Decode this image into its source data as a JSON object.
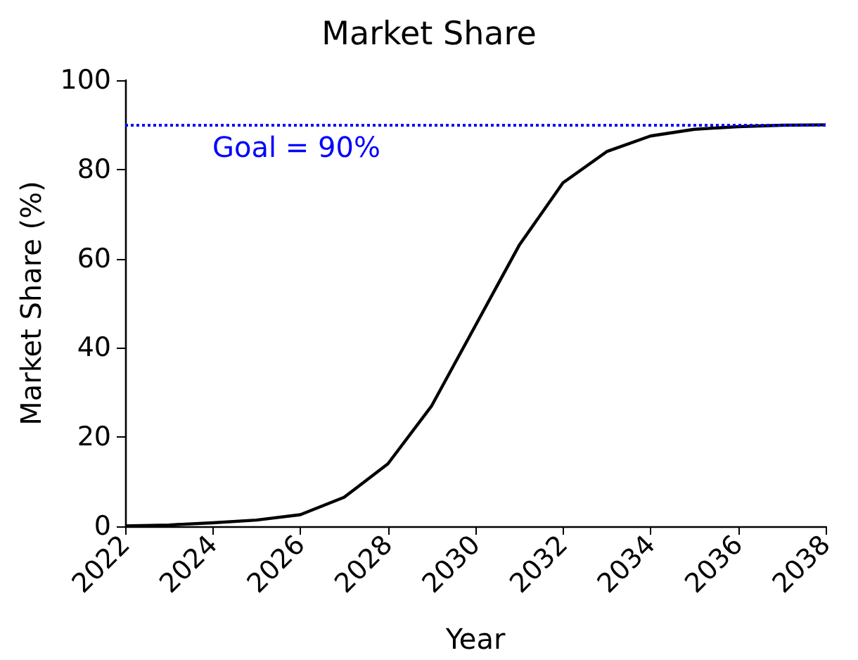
{
  "chart_data": {
    "type": "line",
    "title": "Market Share",
    "xlabel": "Year",
    "ylabel": "Market Share (%)",
    "x": [
      2022,
      2023,
      2024,
      2025,
      2026,
      2027,
      2028,
      2029,
      2029.5,
      2030,
      2030.5,
      2031,
      2032,
      2033,
      2034,
      2035,
      2036,
      2037,
      2038
    ],
    "series": [
      {
        "color": "#000000",
        "values": [
          0.1,
          0.3,
          0.8,
          1.4,
          2.6,
          6.5,
          14,
          27,
          36,
          45,
          54,
          63,
          77,
          84,
          87.5,
          89,
          89.6,
          89.9,
          90
        ]
      }
    ],
    "xlim": [
      2022,
      2038
    ],
    "xticks": [
      2022,
      2024,
      2026,
      2028,
      2030,
      2032,
      2034,
      2036,
      2038
    ],
    "ylim": [
      0,
      100
    ],
    "yticks": [
      0,
      20,
      40,
      60,
      80,
      100
    ],
    "ref_lines": [
      {
        "axis": "y",
        "value": 90,
        "label": "Goal = 90%",
        "color": "#0000ff",
        "line_style": "dotted"
      }
    ],
    "grid": false,
    "marker": "none",
    "line_style": "solid"
  }
}
